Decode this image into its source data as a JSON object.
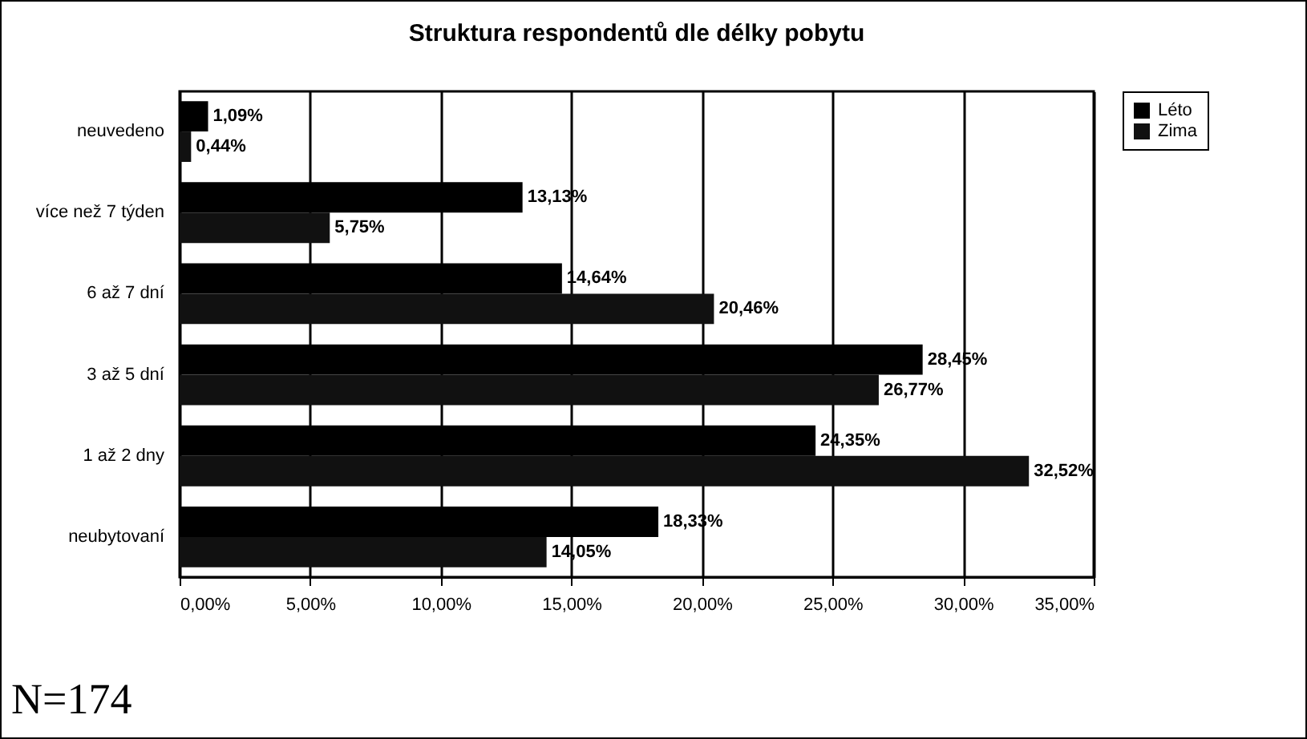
{
  "chart_data": {
    "type": "bar",
    "orientation": "horizontal",
    "title": "Struktura respondentů dle délky pobytu",
    "categories": [
      "neuvedeno",
      "více než 7 týden",
      "6 až 7 dní",
      "3 až 5 dní",
      "1 až 2 dny",
      "neubytovaní"
    ],
    "series": [
      {
        "name": "Léto",
        "color": "#000000",
        "values": [
          1.09,
          13.13,
          14.64,
          28.45,
          24.35,
          18.33
        ],
        "value_labels": [
          "1,09%",
          "13,13%",
          "14,64%",
          "28,45%",
          "24,35%",
          "18,33%"
        ]
      },
      {
        "name": "Zima",
        "color": "#111111",
        "values": [
          0.44,
          5.75,
          20.46,
          26.77,
          32.52,
          14.05
        ],
        "value_labels": [
          "0,44%",
          "5,75%",
          "20,46%",
          "26,77%",
          "32,52%",
          "14,05%"
        ]
      }
    ],
    "xlim": [
      0,
      35
    ],
    "xticks": [
      {
        "value": 0,
        "label": "0,00%"
      },
      {
        "value": 5,
        "label": "5,00%"
      },
      {
        "value": 10,
        "label": "10,00%"
      },
      {
        "value": 15,
        "label": "15,00%"
      },
      {
        "value": 20,
        "label": "20,00%"
      },
      {
        "value": 25,
        "label": "25,00%"
      },
      {
        "value": 30,
        "label": "30,00%"
      },
      {
        "value": 35,
        "label": "35,00%"
      }
    ],
    "grid": "x",
    "legend": "right",
    "annotations": [
      "N=174"
    ]
  }
}
